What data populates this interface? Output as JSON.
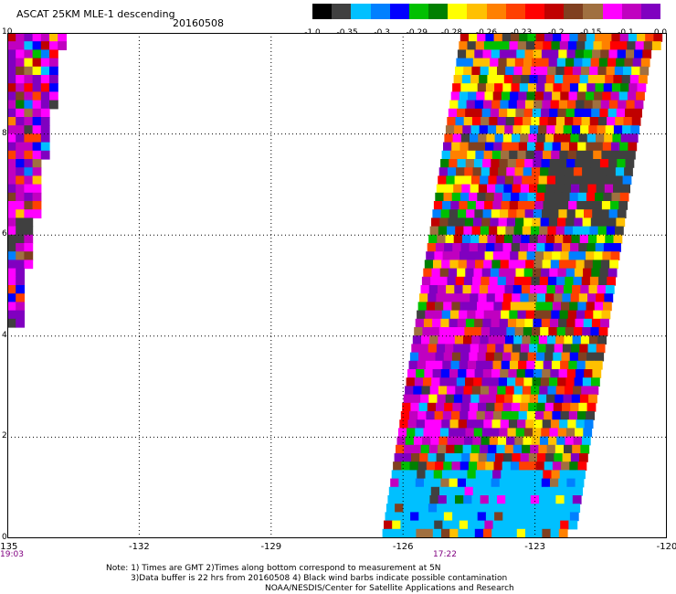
{
  "header": {
    "title": "ASCAT 25KM MLE-1 descending",
    "date": "20160508"
  },
  "colorbar": {
    "colors": [
      "#000000",
      "#404040",
      "#00c0ff",
      "#0080ff",
      "#0000ff",
      "#00c000",
      "#008000",
      "#ffff00",
      "#ffc000",
      "#ff8000",
      "#ff4000",
      "#ff0000",
      "#c00000",
      "#804020",
      "#a07040",
      "#ff00ff",
      "#c000c0",
      "#8000c0"
    ],
    "labels": [
      "-1.0",
      "-0.35",
      "-0.3",
      "-0.29",
      "-0.28",
      "-0.26",
      "-0.23",
      "-0.2",
      "-0.15",
      "-0.1",
      "0.0"
    ]
  },
  "axes": {
    "x_ticks": [
      "-135",
      "-132",
      "-129",
      "-126",
      "-123",
      "-120"
    ],
    "y_ticks": [
      "0",
      "2",
      "4",
      "6",
      "8",
      "10"
    ]
  },
  "times": {
    "left": "19:03",
    "middle": "17:22"
  },
  "notes": {
    "line1": "Note: 1) Times are GMT 2)Times along bottom correspond to measurement at 5N",
    "line2": "3)Data buffer is 22 hrs from 20160508 4) Black wind barbs indicate possible contamination",
    "line3": "NOAA/NESDIS/Center for Satellite Applications and Research"
  },
  "map_data": {
    "lon_range": [
      -135,
      -120
    ],
    "lat_range": [
      0,
      10
    ],
    "swaths": [
      {
        "name": "west-swath",
        "lon_start": -135.0,
        "lon_end": -133.8,
        "lat_bottom": 4.2,
        "lat_top": 10,
        "lon_end_bottom": -134.8
      },
      {
        "name": "east-swath",
        "lon_start": -126.5,
        "lon_end": -120.3,
        "lat_bottom": 0,
        "lat_top": 10,
        "lon_start_top": -124.7,
        "lon_end_bottom": -122.3
      }
    ]
  }
}
